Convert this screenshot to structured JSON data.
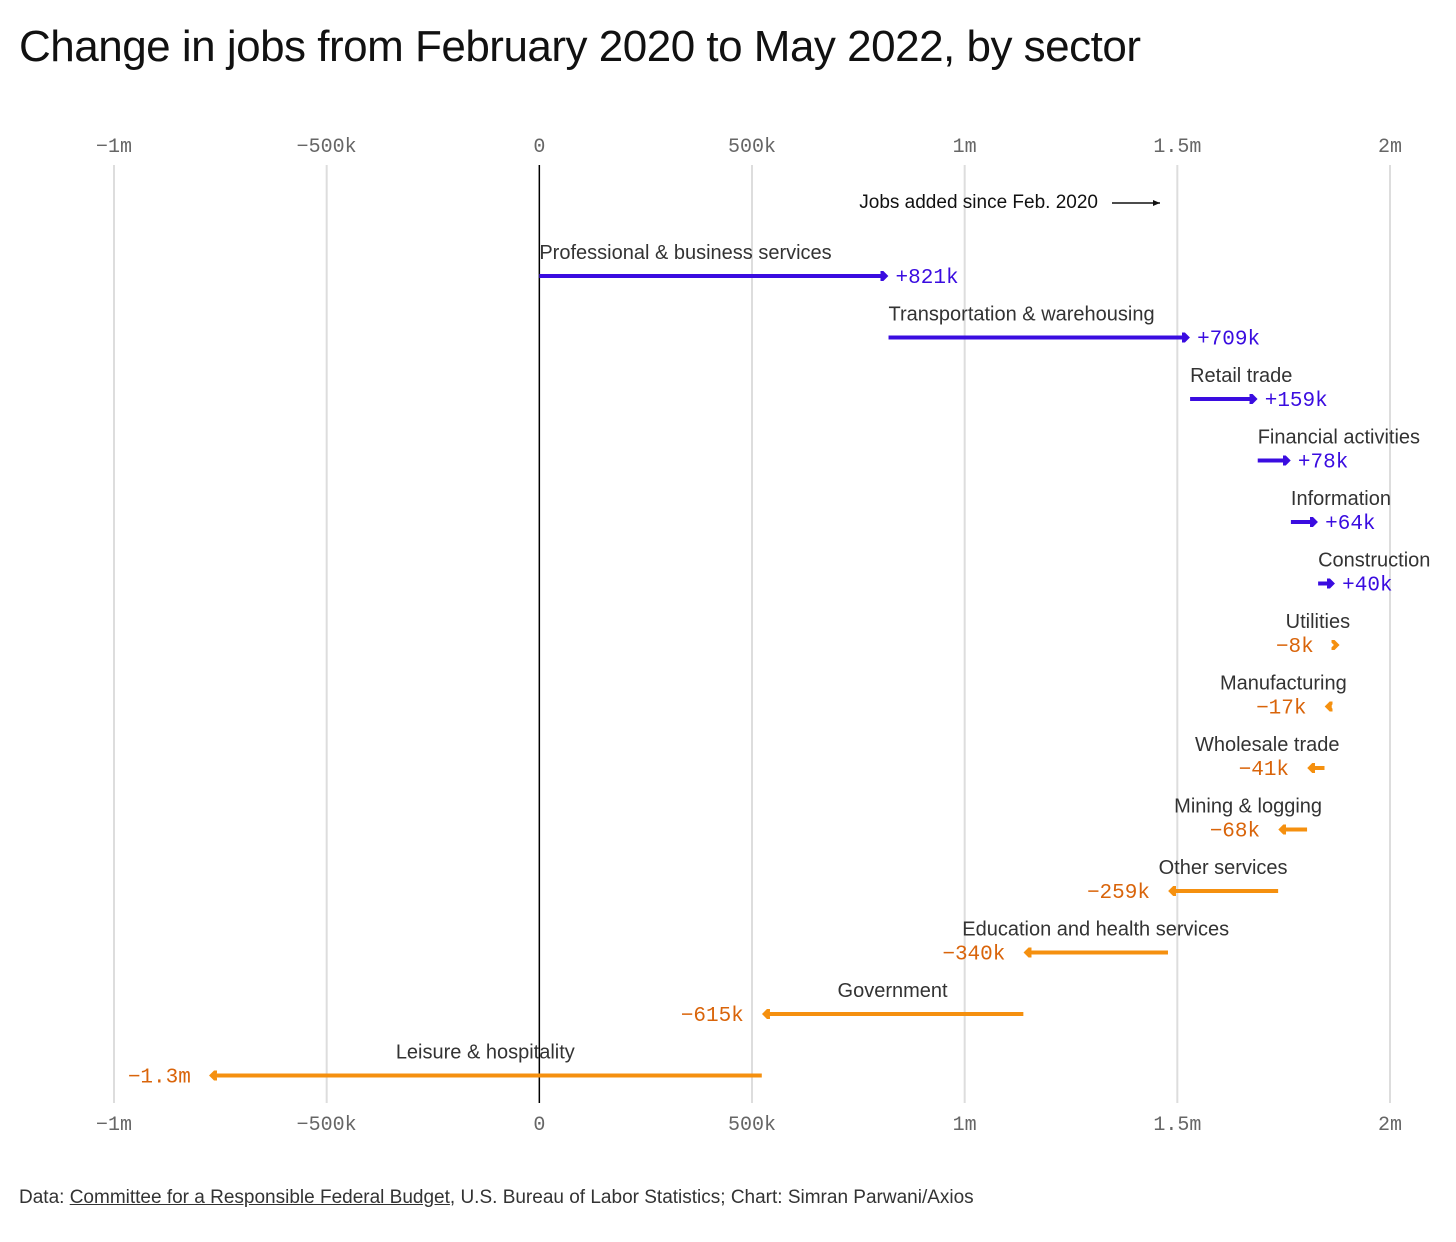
{
  "title": "Change in jobs from February 2020 to May 2022, by sector",
  "annotation": "Jobs added since Feb. 2020",
  "colors": {
    "gain": "#3a0ce0",
    "loss": "#f5900f",
    "loss_text": "#d9640a",
    "grid": "#dddddd",
    "zero": "#000000"
  },
  "footer": {
    "prefix": "Data: ",
    "link": "Committee for a Responsible Federal Budget",
    "rest": ", U.S. Bureau of Labor Statistics; Chart: Simran Parwani/Axios"
  },
  "chart_data": {
    "type": "waterfall",
    "title": "Change in jobs from February 2020 to May 2022, by sector",
    "xlim": [
      -1000000,
      2000000
    ],
    "x_ticks": [
      {
        "value": -1000000,
        "label": "−1m"
      },
      {
        "value": -500000,
        "label": "−500k"
      },
      {
        "value": 0,
        "label": "0"
      },
      {
        "value": 500000,
        "label": "500k"
      },
      {
        "value": 1000000,
        "label": "1m"
      },
      {
        "value": 1500000,
        "label": "1.5m"
      },
      {
        "value": 2000000,
        "label": "2m"
      }
    ],
    "grid": true,
    "series": [
      {
        "category": "Professional & business services",
        "value": 821000,
        "label": "+821k"
      },
      {
        "category": "Transportation & warehousing",
        "value": 709000,
        "label": "+709k"
      },
      {
        "category": "Retail trade",
        "value": 159000,
        "label": "+159k"
      },
      {
        "category": "Financial activities",
        "value": 78000,
        "label": "+78k"
      },
      {
        "category": "Information",
        "value": 64000,
        "label": "+64k"
      },
      {
        "category": "Construction",
        "value": 40000,
        "label": "+40k"
      },
      {
        "category": "Utilities",
        "value": -8000,
        "label": "−8k"
      },
      {
        "category": "Manufacturing",
        "value": -17000,
        "label": "−17k"
      },
      {
        "category": "Wholesale trade",
        "value": -41000,
        "label": "−41k"
      },
      {
        "category": "Mining & logging",
        "value": -68000,
        "label": "−68k"
      },
      {
        "category": "Other services",
        "value": -259000,
        "label": "−259k"
      },
      {
        "category": "Education and health services",
        "value": -340000,
        "label": "−340k"
      },
      {
        "category": "Government",
        "value": -615000,
        "label": "−615k"
      },
      {
        "category": "Leisure & hospitality",
        "value": -1300000,
        "label": "−1.3m"
      }
    ]
  }
}
